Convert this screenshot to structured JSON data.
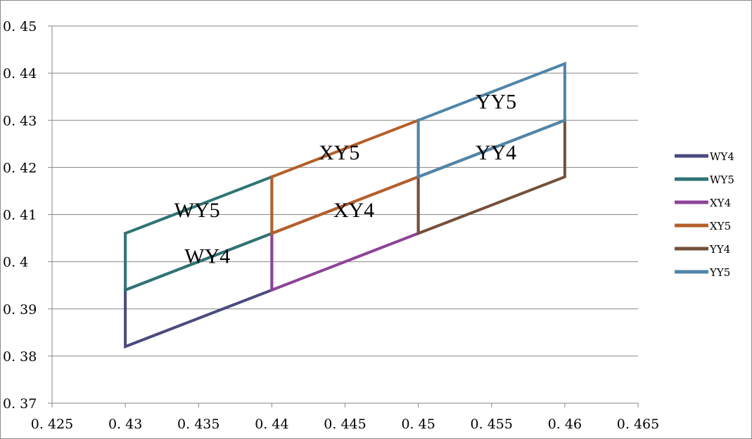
{
  "chart_data": {
    "type": "line",
    "title": "",
    "xlabel": "",
    "ylabel": "",
    "xlim": [
      0.425,
      0.465
    ],
    "ylim": [
      0.37,
      0.45
    ],
    "x_ticks": [
      0.425,
      0.43,
      0.435,
      0.44,
      0.445,
      0.45,
      0.455,
      0.46,
      0.465
    ],
    "y_ticks": [
      0.37,
      0.38,
      0.39,
      0.4,
      0.41,
      0.42,
      0.43,
      0.44,
      0.45
    ],
    "x_tick_labels": [
      "0. 425",
      "0. 43",
      "0. 435",
      "0. 44",
      "0. 445",
      "0. 45",
      "0. 455",
      "0. 46",
      "0. 465"
    ],
    "y_tick_labels": [
      "0. 37",
      "0. 38",
      "0. 39",
      "0. 4",
      "0. 41",
      "0. 42",
      "0. 43",
      "0. 44",
      "0. 45"
    ],
    "grid": "horizontal",
    "legend_position": "right",
    "series": [
      {
        "name": "WY4",
        "color": "#4b4b7f",
        "points": [
          [
            0.43,
            0.394
          ],
          [
            0.43,
            0.382
          ],
          [
            0.44,
            0.394
          ],
          [
            0.44,
            0.406
          ],
          [
            0.43,
            0.394
          ]
        ]
      },
      {
        "name": "WY5",
        "color": "#2f7474",
        "points": [
          [
            0.43,
            0.406
          ],
          [
            0.43,
            0.394
          ],
          [
            0.44,
            0.406
          ],
          [
            0.44,
            0.418
          ],
          [
            0.43,
            0.406
          ]
        ]
      },
      {
        "name": "XY4",
        "color": "#8e4397",
        "points": [
          [
            0.44,
            0.406
          ],
          [
            0.44,
            0.394
          ],
          [
            0.45,
            0.406
          ],
          [
            0.45,
            0.418
          ],
          [
            0.44,
            0.406
          ]
        ]
      },
      {
        "name": "XY5",
        "color": "#b55f29",
        "points": [
          [
            0.44,
            0.418
          ],
          [
            0.44,
            0.406
          ],
          [
            0.45,
            0.418
          ],
          [
            0.45,
            0.43
          ],
          [
            0.44,
            0.418
          ]
        ]
      },
      {
        "name": "YY4",
        "color": "#74513a",
        "points": [
          [
            0.45,
            0.418
          ],
          [
            0.45,
            0.406
          ],
          [
            0.46,
            0.418
          ],
          [
            0.46,
            0.43
          ],
          [
            0.45,
            0.418
          ]
        ]
      },
      {
        "name": "YY5",
        "color": "#5085a8",
        "points": [
          [
            0.45,
            0.43
          ],
          [
            0.45,
            0.418
          ],
          [
            0.46,
            0.43
          ],
          [
            0.46,
            0.442
          ],
          [
            0.45,
            0.43
          ]
        ]
      }
    ],
    "annotations": [
      {
        "text": "WY5",
        "x": 0.4349,
        "y": 0.4095
      },
      {
        "text": "WY4",
        "x": 0.4356,
        "y": 0.3997
      },
      {
        "text": "XY5",
        "x": 0.4446,
        "y": 0.4217
      },
      {
        "text": "XY4",
        "x": 0.4456,
        "y": 0.4095
      },
      {
        "text": "YY5",
        "x": 0.4553,
        "y": 0.4325
      },
      {
        "text": "YY4",
        "x": 0.4553,
        "y": 0.4217
      }
    ]
  }
}
